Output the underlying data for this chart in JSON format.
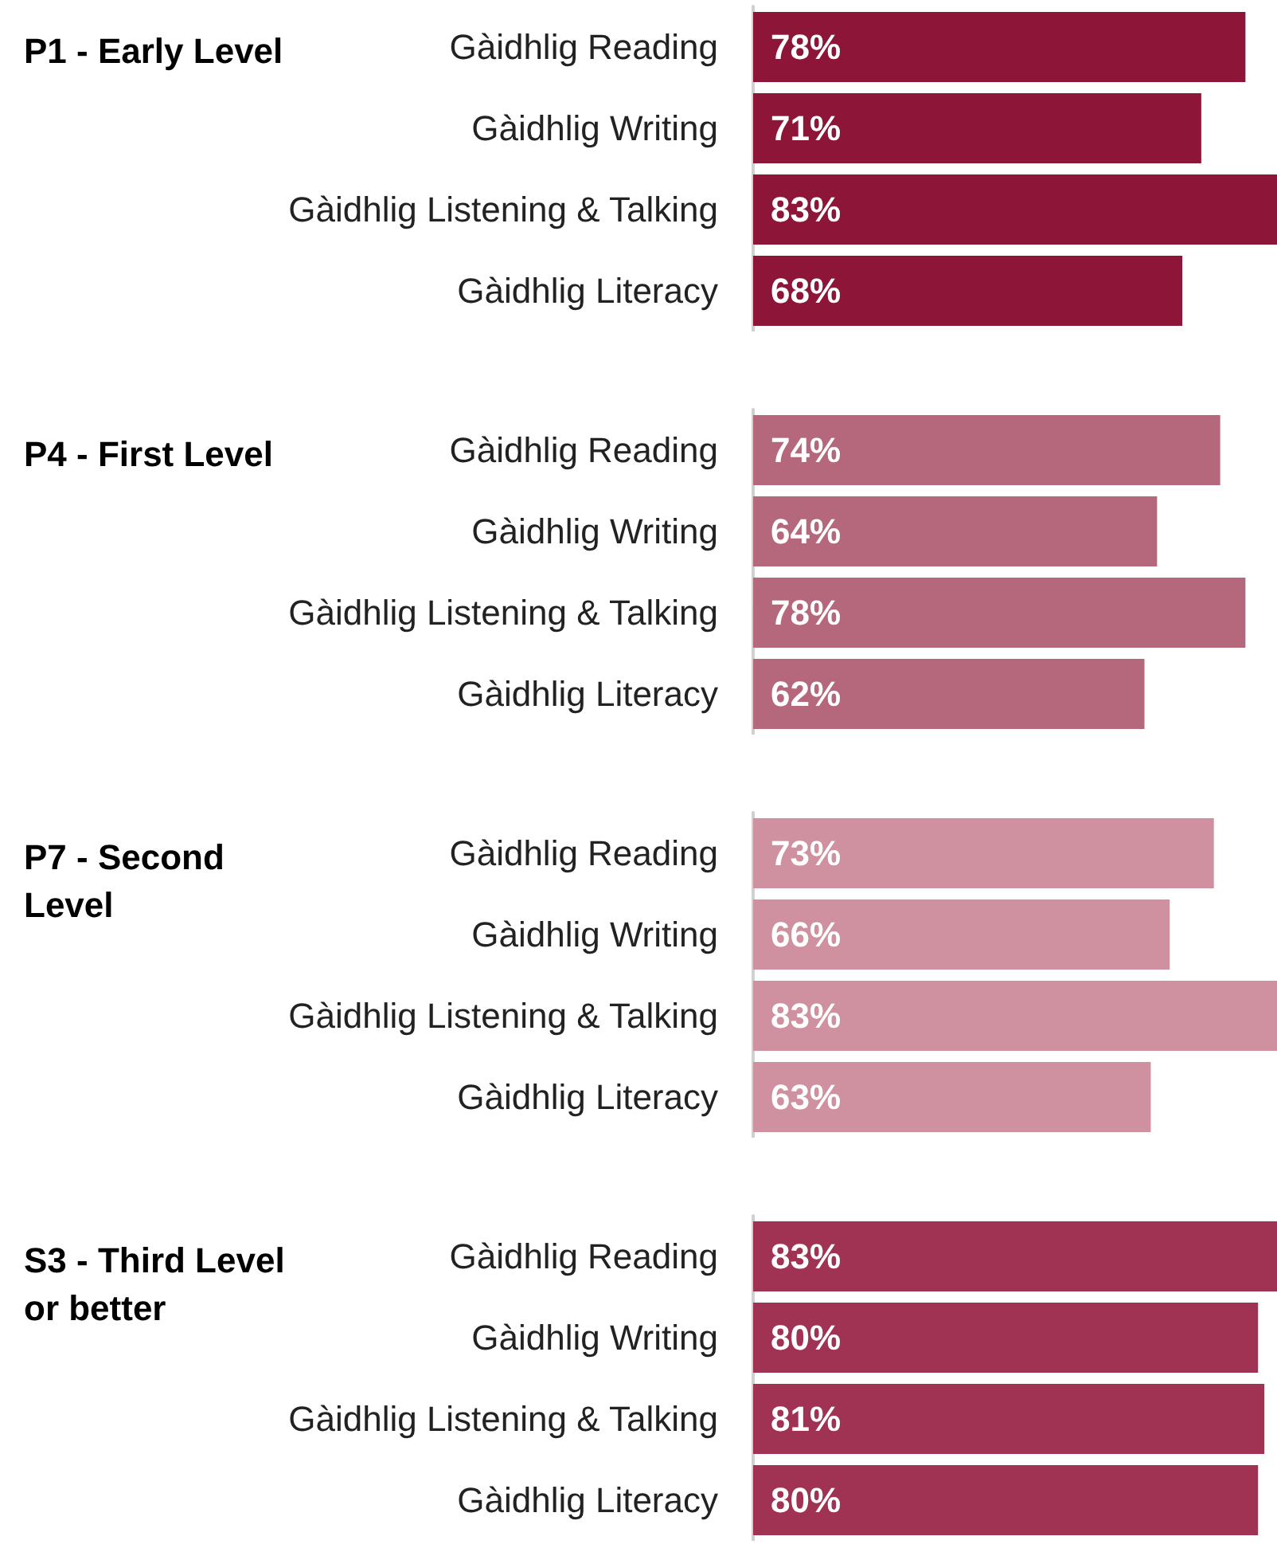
{
  "chart_data": [
    {
      "type": "bar",
      "orientation": "horizontal",
      "title": "P1 - Early Level",
      "categories": [
        "Gàidhlig Reading",
        "Gàidhlig Writing",
        "Gàidhlig Listening & Talking",
        "Gàidhlig Literacy"
      ],
      "values": [
        78,
        71,
        83,
        68
      ],
      "value_labels": [
        "78%",
        "71%",
        "83%",
        "68%"
      ],
      "color": "#8c1538"
    },
    {
      "type": "bar",
      "orientation": "horizontal",
      "title": "P4 - First Level",
      "categories": [
        "Gàidhlig Reading",
        "Gàidhlig Writing",
        "Gàidhlig Listening & Talking",
        "Gàidhlig Literacy"
      ],
      "values": [
        74,
        64,
        78,
        62
      ],
      "value_labels": [
        "74%",
        "64%",
        "78%",
        "62%"
      ],
      "color": "#b5687b"
    },
    {
      "type": "bar",
      "orientation": "horizontal",
      "title": "P7 - Second Level",
      "categories": [
        "Gàidhlig Reading",
        "Gàidhlig Writing",
        "Gàidhlig Listening & Talking",
        "Gàidhlig Literacy"
      ],
      "values": [
        73,
        66,
        83,
        63
      ],
      "value_labels": [
        "73%",
        "66%",
        "83%",
        "63%"
      ],
      "color": "#cf909f"
    },
    {
      "type": "bar",
      "orientation": "horizontal",
      "title": "S3 - Third Level or better",
      "categories": [
        "Gàidhlig Reading",
        "Gàidhlig Writing",
        "Gàidhlig Listening & Talking",
        "Gàidhlig Literacy"
      ],
      "values": [
        83,
        80,
        81,
        80
      ],
      "value_labels": [
        "83%",
        "80%",
        "81%",
        "80%"
      ],
      "color": "#a03254"
    }
  ]
}
